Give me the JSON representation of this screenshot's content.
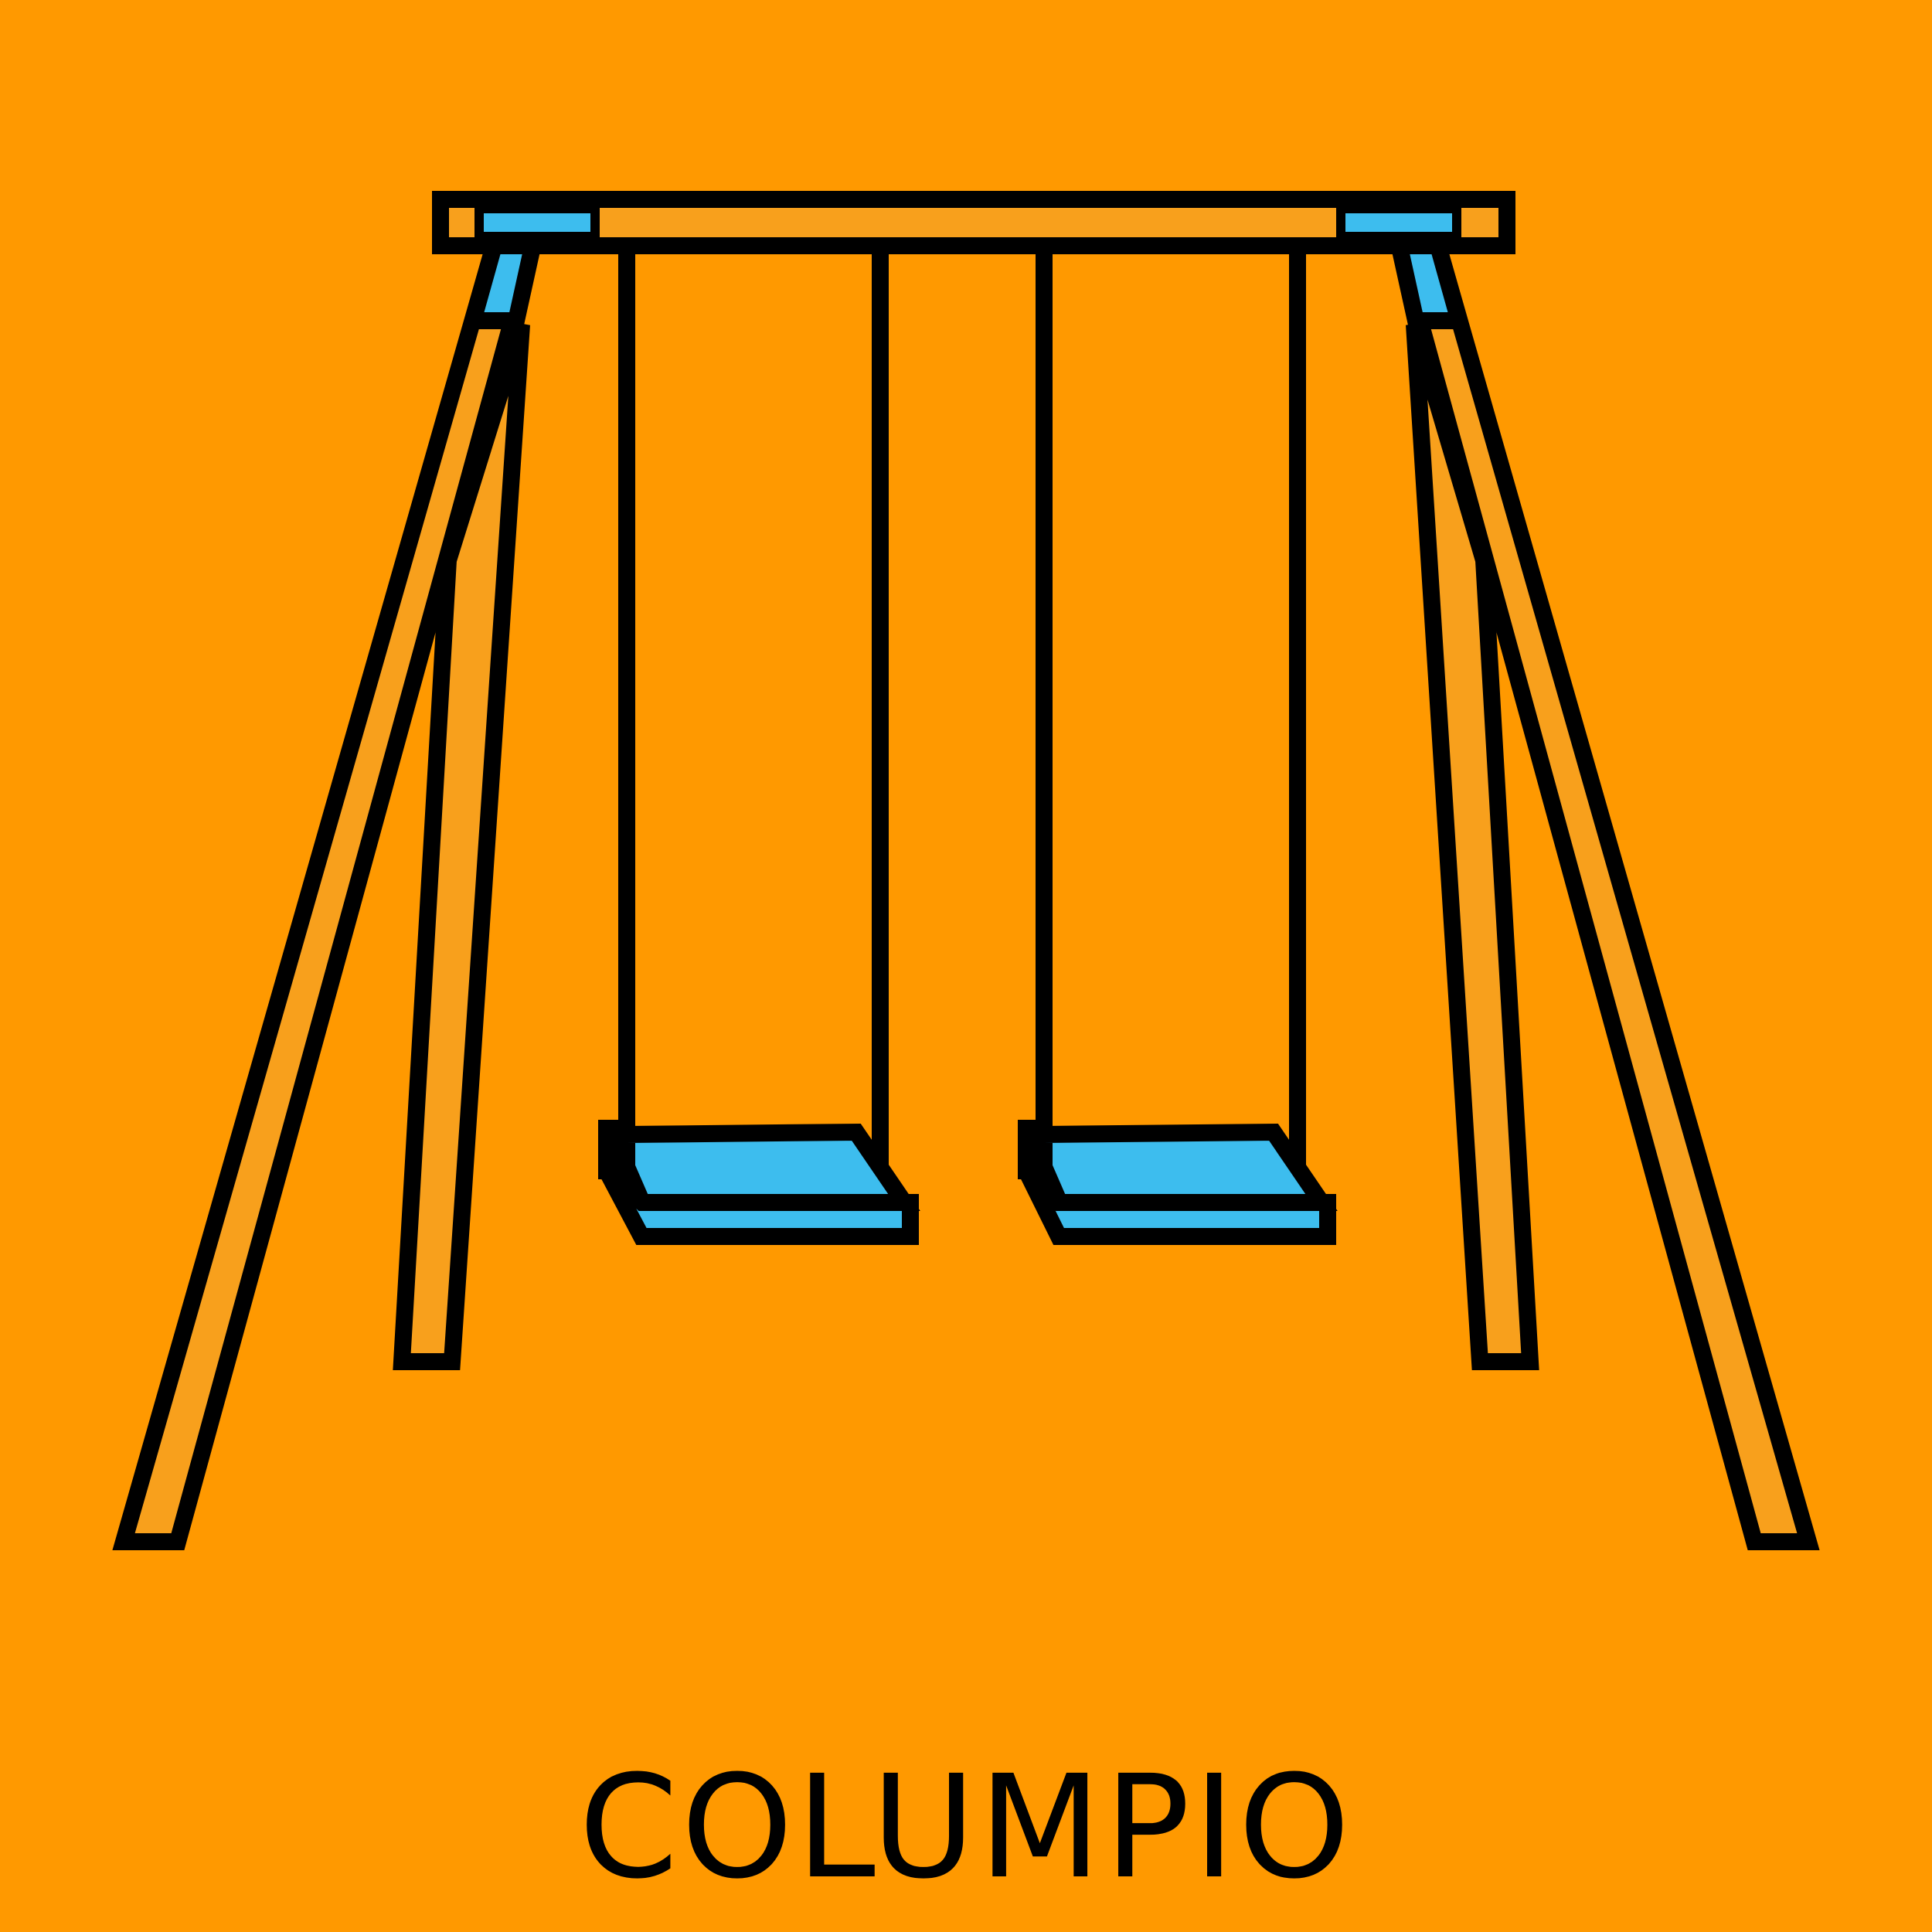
{
  "title": "COLUMPIO",
  "colors": {
    "background": "#ff9900",
    "wood": "#f8a01c",
    "seat": "#3dbdee",
    "outline": "#000000"
  },
  "icons": [
    "swing-set-illustration"
  ]
}
